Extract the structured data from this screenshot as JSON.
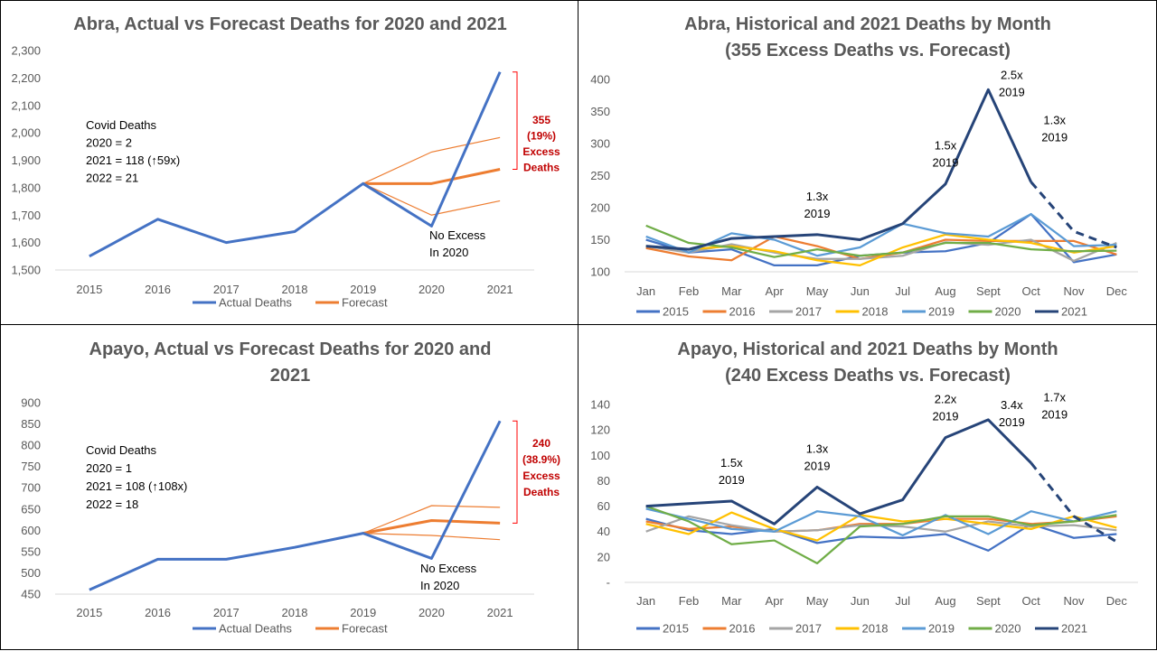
{
  "colors": {
    "actual": "#4472c4",
    "forecast": "#ed7d31",
    "excess_bracket": "#ff0000",
    "excess_text": "#c00000",
    "gridline": "#d9d9d9",
    "y2015": "#4472c4",
    "y2016": "#ed7d31",
    "y2017": "#a5a5a5",
    "y2018": "#ffc000",
    "y2019": "#5b9bd5",
    "y2020": "#70ad47",
    "y2021": "#264478"
  },
  "chart_data": [
    {
      "type": "line",
      "title": [
        "Abra, Actual vs Forecast Deaths for 2020 and 2021"
      ],
      "categories": [
        "2015",
        "2016",
        "2017",
        "2018",
        "2019",
        "2020",
        "2021"
      ],
      "ylim": [
        1500,
        2300
      ],
      "yticks": [
        1500,
        1600,
        1700,
        1800,
        1900,
        2000,
        2100,
        2200,
        2300
      ],
      "ytick_labels": [
        "1,500",
        "1,600",
        "1,700",
        "1,800",
        "1,900",
        "2,000",
        "2,100",
        "2,200",
        "2,300"
      ],
      "grid": false,
      "legend": "bottom",
      "series": [
        {
          "name": "Actual Deaths",
          "values": [
            1550,
            1685,
            1600,
            1640,
            1815,
            1660,
            2222
          ],
          "color_key": "actual",
          "width": 3
        },
        {
          "name": "Forecast",
          "values": [
            null,
            null,
            null,
            null,
            1815,
            1815,
            1867
          ],
          "color_key": "forecast",
          "width": 3
        }
      ],
      "bounds": [
        {
          "values": [
            null,
            null,
            null,
            null,
            1815,
            1930,
            1983
          ]
        },
        {
          "values": [
            null,
            null,
            null,
            null,
            1815,
            1700,
            1752
          ]
        }
      ],
      "covid_notes": [
        "Covid Deaths",
        "2020 = 2",
        "2021 = 118 (↑59x)",
        "2022 = 21"
      ],
      "annotations": [
        {
          "category": "2020",
          "lines": [
            "No Excess",
            "In 2020"
          ]
        }
      ],
      "excess": {
        "lines": [
          "355",
          "(19%)",
          "Excess",
          "Deaths"
        ],
        "from": 1867,
        "to": 2222
      }
    },
    {
      "type": "line",
      "title": [
        "Abra, Historical and 2021 Deaths by Month",
        "(355 Excess Deaths vs. Forecast)"
      ],
      "categories": [
        "Jan",
        "Feb",
        "Mar",
        "Apr",
        "May",
        "Jun",
        "Jul",
        "Aug",
        "Sept",
        "Oct",
        "Nov",
        "Dec"
      ],
      "ylim": [
        100,
        400
      ],
      "yticks": [
        100,
        150,
        200,
        250,
        300,
        350,
        400
      ],
      "ytick_labels": [
        "100",
        "150",
        "200",
        "250",
        "300",
        "350",
        "400"
      ],
      "grid": false,
      "legend": "bottom",
      "series": [
        {
          "name": "2015",
          "color_key": "y2015",
          "values": [
            150,
            130,
            135,
            110,
            110,
            125,
            130,
            132,
            145,
            190,
            115,
            127
          ]
        },
        {
          "name": "2016",
          "color_key": "y2016",
          "values": [
            137,
            124,
            118,
            155,
            140,
            120,
            130,
            150,
            148,
            148,
            148,
            127
          ]
        },
        {
          "name": "2017",
          "color_key": "y2017",
          "values": [
            140,
            130,
            143,
            130,
            120,
            120,
            125,
            146,
            142,
            150,
            117,
            145
          ]
        },
        {
          "name": "2018",
          "color_key": "y2018",
          "values": [
            140,
            135,
            140,
            132,
            118,
            110,
            138,
            158,
            150,
            145,
            130,
            140
          ]
        },
        {
          "name": "2019",
          "color_key": "y2019",
          "values": [
            155,
            130,
            160,
            150,
            125,
            138,
            175,
            160,
            155,
            190,
            140,
            142
          ]
        },
        {
          "name": "2020",
          "color_key": "y2020",
          "values": [
            172,
            145,
            138,
            123,
            135,
            125,
            130,
            145,
            145,
            135,
            132,
            133
          ]
        },
        {
          "name": "2021",
          "color_key": "y2021",
          "values": [
            140,
            135,
            152,
            155,
            158,
            150,
            175,
            237,
            384,
            240,
            null,
            null
          ],
          "dashed": [
            240,
            163,
            138
          ],
          "dash_start": 9,
          "width": 3
        }
      ],
      "annotations": [
        {
          "category": "May",
          "value": 158,
          "lines": [
            "1.3x",
            "2019"
          ]
        },
        {
          "category": "Aug",
          "value": 237,
          "lines": [
            "1.5x",
            "2019"
          ]
        },
        {
          "category": "Sept",
          "value": 384,
          "lines": [
            "2.5x",
            "2019"
          ]
        },
        {
          "category": "Oct",
          "value": 240,
          "lines": [
            "1.3x",
            "2019"
          ]
        }
      ]
    },
    {
      "type": "line",
      "title": [
        "Apayo, Actual vs Forecast Deaths for 2020 and",
        "2021"
      ],
      "categories": [
        "2015",
        "2016",
        "2017",
        "2018",
        "2019",
        "2020",
        "2021"
      ],
      "ylim": [
        450,
        900
      ],
      "yticks": [
        450,
        500,
        550,
        600,
        650,
        700,
        750,
        800,
        850,
        900
      ],
      "ytick_labels": [
        "450",
        "500",
        "550",
        "600",
        "650",
        "700",
        "750",
        "800",
        "850",
        "900"
      ],
      "grid": false,
      "legend": "bottom",
      "series": [
        {
          "name": "Actual Deaths",
          "values": [
            460,
            532,
            532,
            560,
            593,
            534,
            857
          ],
          "color_key": "actual",
          "width": 3
        },
        {
          "name": "Forecast",
          "values": [
            null,
            null,
            null,
            null,
            593,
            623,
            617
          ],
          "color_key": "forecast",
          "width": 3
        }
      ],
      "bounds": [
        {
          "values": [
            null,
            null,
            null,
            null,
            593,
            658,
            654
          ]
        },
        {
          "values": [
            null,
            null,
            null,
            null,
            593,
            588,
            578
          ]
        }
      ],
      "covid_notes": [
        "Covid Deaths",
        "2020 = 1",
        "2021 = 108 (↑108x)",
        "2022 = 18"
      ],
      "annotations": [
        {
          "category": "2020",
          "lines": [
            "No Excess",
            "In 2020"
          ]
        }
      ],
      "excess": {
        "lines": [
          "240",
          "(38.9%)",
          "Excess",
          "Deaths"
        ],
        "from": 617,
        "to": 857
      }
    },
    {
      "type": "line",
      "title": [
        "Apayo, Historical and 2021 Deaths by Month",
        "(240 Excess Deaths vs. Forecast)"
      ],
      "categories": [
        "Jan",
        "Feb",
        "Mar",
        "Apr",
        "May",
        "Jun",
        "Jul",
        "Aug",
        "Sept",
        "Oct",
        "Nov",
        "Dec"
      ],
      "ylim": [
        0,
        140
      ],
      "yticks": [
        0,
        20,
        40,
        60,
        80,
        100,
        120,
        140
      ],
      "ytick_labels": [
        "-",
        "20",
        "40",
        "60",
        "80",
        "100",
        "120",
        "140"
      ],
      "grid": false,
      "legend": "bottom",
      "series": [
        {
          "name": "2015",
          "color_key": "y2015",
          "values": [
            50,
            41,
            38,
            42,
            31,
            36,
            35,
            38,
            25,
            46,
            35,
            38
          ]
        },
        {
          "name": "2016",
          "color_key": "y2016",
          "values": [
            48,
            42,
            44,
            40,
            41,
            46,
            46,
            50,
            50,
            46,
            48,
            52
          ]
        },
        {
          "name": "2017",
          "color_key": "y2017",
          "values": [
            40,
            52,
            45,
            40,
            41,
            45,
            44,
            40,
            48,
            44,
            45,
            41
          ]
        },
        {
          "name": "2018",
          "color_key": "y2018",
          "values": [
            46,
            38,
            55,
            42,
            33,
            53,
            48,
            50,
            46,
            42,
            52,
            43
          ]
        },
        {
          "name": "2019",
          "color_key": "y2019",
          "values": [
            58,
            50,
            42,
            40,
            56,
            52,
            37,
            53,
            38,
            56,
            48,
            56
          ]
        },
        {
          "name": "2020",
          "color_key": "y2020",
          "values": [
            60,
            48,
            30,
            33,
            15,
            44,
            46,
            52,
            52,
            45,
            48,
            53
          ]
        },
        {
          "name": "2021",
          "color_key": "y2021",
          "values": [
            60,
            62,
            64,
            46,
            75,
            54,
            65,
            114,
            128,
            94,
            null,
            null
          ],
          "dashed": [
            94,
            52,
            32
          ],
          "dash_start": 9,
          "width": 3
        }
      ],
      "annotations": [
        {
          "category": "Mar",
          "value": 64,
          "lines": [
            "1.5x",
            "2019"
          ]
        },
        {
          "category": "May",
          "value": 75,
          "lines": [
            "1.3x",
            "2019"
          ]
        },
        {
          "category": "Aug",
          "value": 114,
          "lines": [
            "2.2x",
            "2019"
          ]
        },
        {
          "category": "Sept",
          "value": 128,
          "lines": [
            "3.4x",
            "2019"
          ]
        },
        {
          "category": "Oct",
          "value": 94,
          "lines": [
            "1.7x",
            "2019"
          ]
        }
      ]
    }
  ]
}
